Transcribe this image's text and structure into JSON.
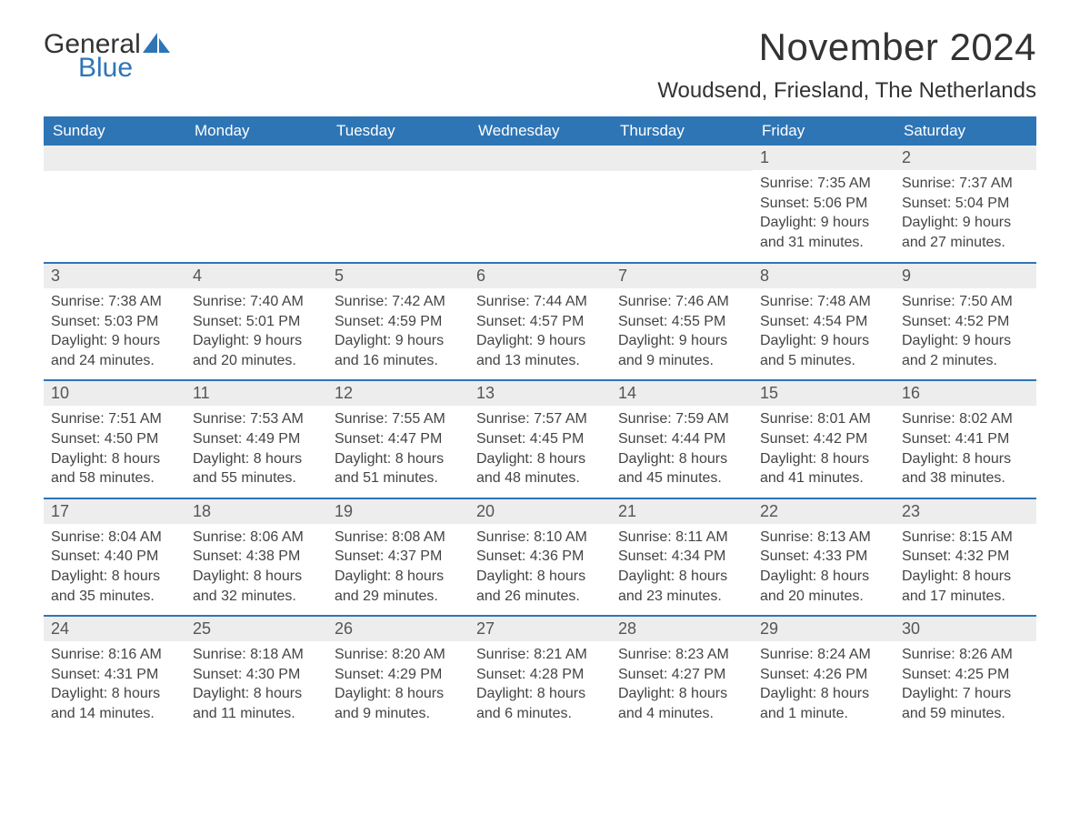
{
  "brand": {
    "word1": "General",
    "word2": "Blue"
  },
  "title": "November 2024",
  "location": "Woudsend, Friesland, The Netherlands",
  "colors": {
    "header_bg": "#2e75b6",
    "header_text": "#ffffff",
    "daynum_bg": "#ededed",
    "border": "#2e75b6",
    "body_text": "#444444"
  },
  "weekdays": [
    "Sunday",
    "Monday",
    "Tuesday",
    "Wednesday",
    "Thursday",
    "Friday",
    "Saturday"
  ],
  "weeks": [
    [
      null,
      null,
      null,
      null,
      null,
      {
        "n": "1",
        "sunrise": "7:35 AM",
        "sunset": "5:06 PM",
        "daylight": "9 hours and 31 minutes."
      },
      {
        "n": "2",
        "sunrise": "7:37 AM",
        "sunset": "5:04 PM",
        "daylight": "9 hours and 27 minutes."
      }
    ],
    [
      {
        "n": "3",
        "sunrise": "7:38 AM",
        "sunset": "5:03 PM",
        "daylight": "9 hours and 24 minutes."
      },
      {
        "n": "4",
        "sunrise": "7:40 AM",
        "sunset": "5:01 PM",
        "daylight": "9 hours and 20 minutes."
      },
      {
        "n": "5",
        "sunrise": "7:42 AM",
        "sunset": "4:59 PM",
        "daylight": "9 hours and 16 minutes."
      },
      {
        "n": "6",
        "sunrise": "7:44 AM",
        "sunset": "4:57 PM",
        "daylight": "9 hours and 13 minutes."
      },
      {
        "n": "7",
        "sunrise": "7:46 AM",
        "sunset": "4:55 PM",
        "daylight": "9 hours and 9 minutes."
      },
      {
        "n": "8",
        "sunrise": "7:48 AM",
        "sunset": "4:54 PM",
        "daylight": "9 hours and 5 minutes."
      },
      {
        "n": "9",
        "sunrise": "7:50 AM",
        "sunset": "4:52 PM",
        "daylight": "9 hours and 2 minutes."
      }
    ],
    [
      {
        "n": "10",
        "sunrise": "7:51 AM",
        "sunset": "4:50 PM",
        "daylight": "8 hours and 58 minutes."
      },
      {
        "n": "11",
        "sunrise": "7:53 AM",
        "sunset": "4:49 PM",
        "daylight": "8 hours and 55 minutes."
      },
      {
        "n": "12",
        "sunrise": "7:55 AM",
        "sunset": "4:47 PM",
        "daylight": "8 hours and 51 minutes."
      },
      {
        "n": "13",
        "sunrise": "7:57 AM",
        "sunset": "4:45 PM",
        "daylight": "8 hours and 48 minutes."
      },
      {
        "n": "14",
        "sunrise": "7:59 AM",
        "sunset": "4:44 PM",
        "daylight": "8 hours and 45 minutes."
      },
      {
        "n": "15",
        "sunrise": "8:01 AM",
        "sunset": "4:42 PM",
        "daylight": "8 hours and 41 minutes."
      },
      {
        "n": "16",
        "sunrise": "8:02 AM",
        "sunset": "4:41 PM",
        "daylight": "8 hours and 38 minutes."
      }
    ],
    [
      {
        "n": "17",
        "sunrise": "8:04 AM",
        "sunset": "4:40 PM",
        "daylight": "8 hours and 35 minutes."
      },
      {
        "n": "18",
        "sunrise": "8:06 AM",
        "sunset": "4:38 PM",
        "daylight": "8 hours and 32 minutes."
      },
      {
        "n": "19",
        "sunrise": "8:08 AM",
        "sunset": "4:37 PM",
        "daylight": "8 hours and 29 minutes."
      },
      {
        "n": "20",
        "sunrise": "8:10 AM",
        "sunset": "4:36 PM",
        "daylight": "8 hours and 26 minutes."
      },
      {
        "n": "21",
        "sunrise": "8:11 AM",
        "sunset": "4:34 PM",
        "daylight": "8 hours and 23 minutes."
      },
      {
        "n": "22",
        "sunrise": "8:13 AM",
        "sunset": "4:33 PM",
        "daylight": "8 hours and 20 minutes."
      },
      {
        "n": "23",
        "sunrise": "8:15 AM",
        "sunset": "4:32 PM",
        "daylight": "8 hours and 17 minutes."
      }
    ],
    [
      {
        "n": "24",
        "sunrise": "8:16 AM",
        "sunset": "4:31 PM",
        "daylight": "8 hours and 14 minutes."
      },
      {
        "n": "25",
        "sunrise": "8:18 AM",
        "sunset": "4:30 PM",
        "daylight": "8 hours and 11 minutes."
      },
      {
        "n": "26",
        "sunrise": "8:20 AM",
        "sunset": "4:29 PM",
        "daylight": "8 hours and 9 minutes."
      },
      {
        "n": "27",
        "sunrise": "8:21 AM",
        "sunset": "4:28 PM",
        "daylight": "8 hours and 6 minutes."
      },
      {
        "n": "28",
        "sunrise": "8:23 AM",
        "sunset": "4:27 PM",
        "daylight": "8 hours and 4 minutes."
      },
      {
        "n": "29",
        "sunrise": "8:24 AM",
        "sunset": "4:26 PM",
        "daylight": "8 hours and 1 minute."
      },
      {
        "n": "30",
        "sunrise": "8:26 AM",
        "sunset": "4:25 PM",
        "daylight": "7 hours and 59 minutes."
      }
    ]
  ],
  "labels": {
    "sunrise": "Sunrise: ",
    "sunset": "Sunset: ",
    "daylight": "Daylight: "
  }
}
